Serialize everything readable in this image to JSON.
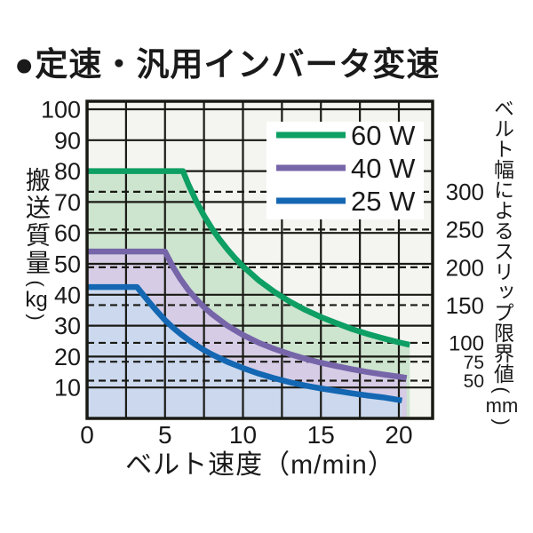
{
  "title": "●定速・汎用インバータ変速",
  "chart_data": {
    "type": "line",
    "xlabel": "ベルト速度（m/min）",
    "ylabel_left_kanji": "搬送質量",
    "ylabel_left_unit": "kg",
    "ylabel_right_kanji": "ベルト幅によるスリップ限界値",
    "ylabel_right_unit": "mm",
    "xlim": [
      0,
      22.2
    ],
    "ylim": [
      0,
      102.6
    ],
    "x_ticks": [
      0,
      5,
      10,
      15,
      20
    ],
    "x_grid_step": 2.5,
    "y_ticks": [
      10,
      20,
      30,
      40,
      50,
      60,
      70,
      80,
      90,
      100
    ],
    "grid": true,
    "legend_position": "top-right",
    "right_axis": {
      "ticks_mm": [
        300,
        250,
        200,
        150,
        100,
        75,
        50
      ],
      "kg_per_mm": 0.2444,
      "style": "dashed-gridlines"
    },
    "series": [
      {
        "name": "60 W",
        "color": "#0d9f63",
        "fill": "#cde4cf",
        "points": [
          [
            0,
            80
          ],
          [
            6.15,
            80
          ],
          [
            6.5,
            75.7
          ],
          [
            7,
            70.3
          ],
          [
            7.5,
            65.6
          ],
          [
            8,
            61.5
          ],
          [
            8.5,
            57.9
          ],
          [
            9,
            54.7
          ],
          [
            9.5,
            51.8
          ],
          [
            10,
            49.2
          ],
          [
            11,
            44.7
          ],
          [
            12,
            41
          ],
          [
            13,
            37.8
          ],
          [
            14,
            35.1
          ],
          [
            15,
            32.8
          ],
          [
            16,
            30.8
          ],
          [
            17,
            28.9
          ],
          [
            18,
            27.3
          ],
          [
            19,
            25.9
          ],
          [
            20,
            24.6
          ],
          [
            20.7,
            23.8
          ]
        ]
      },
      {
        "name": "40 W",
        "color": "#7765a9",
        "fill": "#d6cce6",
        "points": [
          [
            0,
            54
          ],
          [
            5,
            54
          ],
          [
            5.5,
            49.1
          ],
          [
            6,
            45
          ],
          [
            6.5,
            41.5
          ],
          [
            7,
            38.6
          ],
          [
            7.5,
            36
          ],
          [
            8,
            33.8
          ],
          [
            9,
            30
          ],
          [
            10,
            27
          ],
          [
            11,
            24.5
          ],
          [
            12,
            22.5
          ],
          [
            13,
            20.8
          ],
          [
            14,
            19.3
          ],
          [
            15,
            18
          ],
          [
            16,
            16.9
          ],
          [
            17,
            15.9
          ],
          [
            18,
            15
          ],
          [
            19,
            14.2
          ],
          [
            20,
            13.5
          ],
          [
            20.5,
            13.1
          ]
        ]
      },
      {
        "name": "25 W",
        "color": "#1467b2",
        "fill": "#cbd8ee",
        "points": [
          [
            0,
            42.5
          ],
          [
            3.2,
            42.5
          ],
          [
            3.6,
            40
          ],
          [
            4,
            37.5
          ],
          [
            4.5,
            34.6
          ],
          [
            5,
            31.8
          ],
          [
            5.5,
            29.4
          ],
          [
            6,
            27.3
          ],
          [
            6.5,
            25.4
          ],
          [
            7,
            23.7
          ],
          [
            7.5,
            22.1
          ],
          [
            8,
            20.7
          ],
          [
            9,
            18.3
          ],
          [
            10,
            16.3
          ],
          [
            11,
            14.5
          ],
          [
            12,
            13
          ],
          [
            13,
            11.7
          ],
          [
            14,
            10.6
          ],
          [
            15,
            9.7
          ],
          [
            16,
            8.9
          ],
          [
            17,
            8.1
          ],
          [
            18,
            7.4
          ],
          [
            19,
            6.8
          ],
          [
            20.2,
            5.8
          ]
        ]
      }
    ],
    "colors": {
      "plot_background": "#f4f4f1",
      "grid": "#1a1a14",
      "border": "#1a1a14",
      "text": "#1a1a1a",
      "legend_background": "#ffffff"
    }
  }
}
